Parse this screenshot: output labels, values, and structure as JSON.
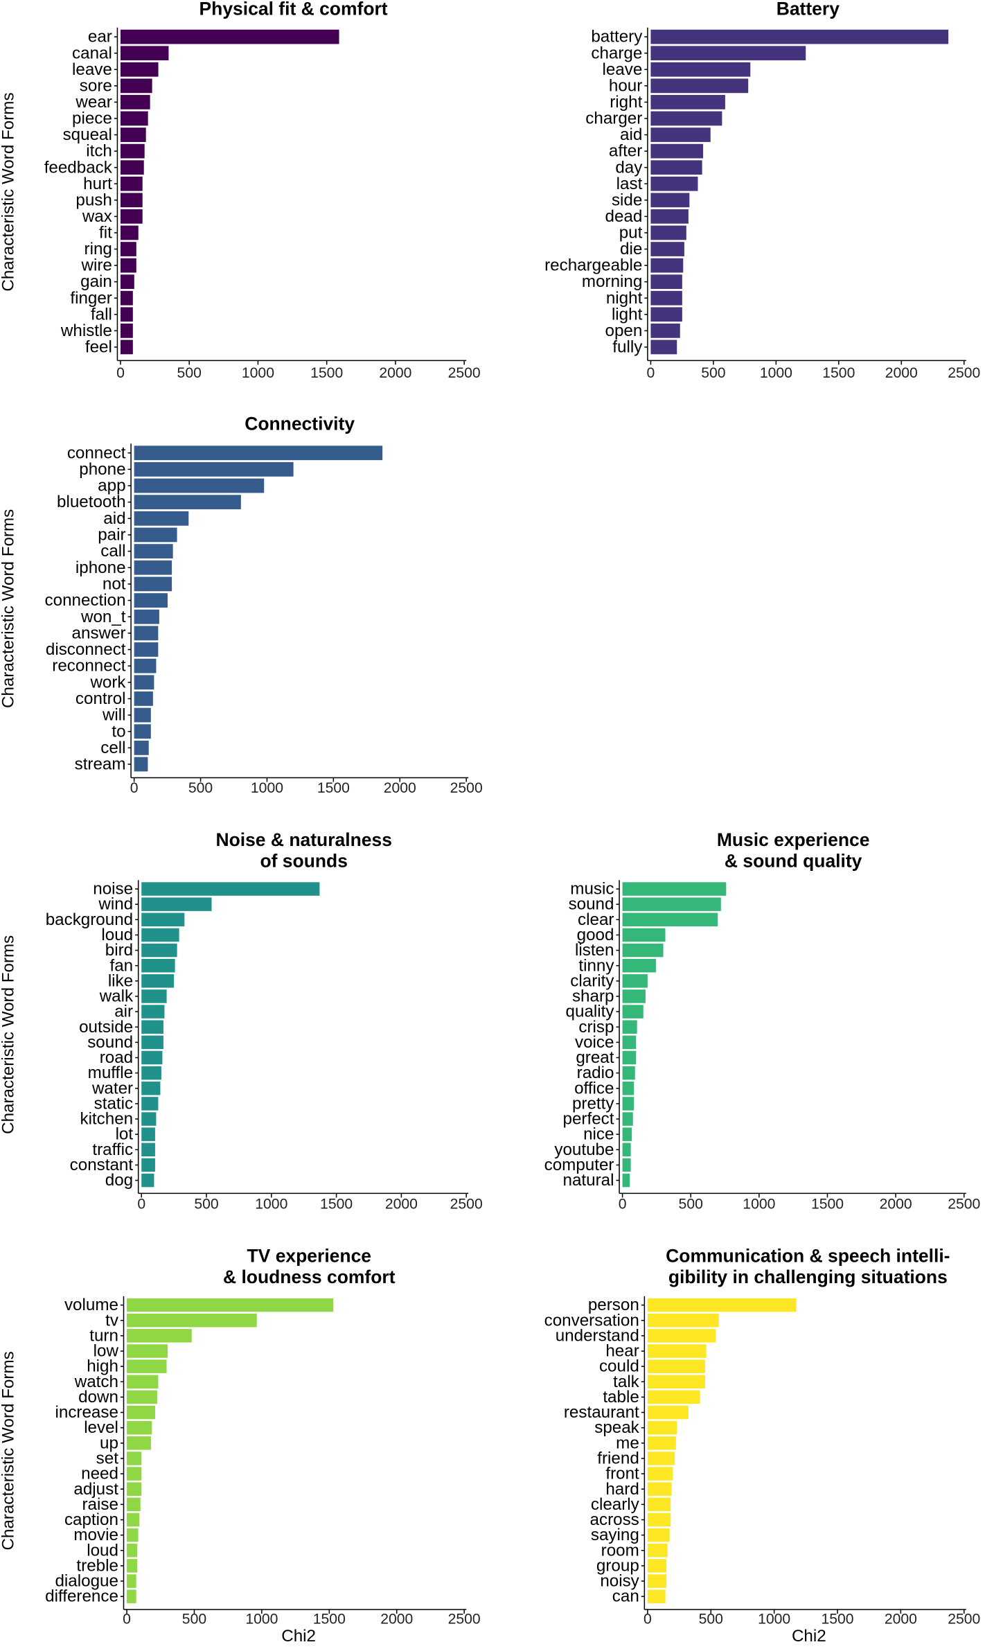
{
  "chart_data": [
    {
      "type": "bar",
      "orientation": "horizontal",
      "title": [
        "Physical fit & comfort"
      ],
      "color": "#440154",
      "ylabel": "Characteristic Word Forms",
      "xlabel": "",
      "xlim": [
        0,
        2500
      ],
      "xticks": [
        0,
        500,
        1000,
        1500,
        2000,
        2500
      ],
      "categories": [
        "ear",
        "canal",
        "leave",
        "sore",
        "wear",
        "piece",
        "squeal",
        "itch",
        "feedback",
        "hurt",
        "push",
        "wax",
        "fit",
        "ring",
        "wire",
        "gain",
        "finger",
        "fall",
        "whistle",
        "feel"
      ],
      "values": [
        1590,
        350,
        275,
        230,
        215,
        200,
        185,
        175,
        170,
        160,
        160,
        160,
        130,
        115,
        115,
        100,
        90,
        90,
        90,
        90
      ]
    },
    {
      "type": "bar",
      "orientation": "horizontal",
      "title": [
        "Battery"
      ],
      "color": "#46337E",
      "ylabel": "",
      "xlabel": "",
      "xlim": [
        0,
        2500
      ],
      "xticks": [
        0,
        500,
        1000,
        1500,
        2000,
        2500
      ],
      "categories": [
        "battery",
        "charge",
        "leave",
        "hour",
        "right",
        "charger",
        "aid",
        "after",
        "day",
        "last",
        "side",
        "dead",
        "put",
        "die",
        "rechargeable",
        "morning",
        "night",
        "light",
        "open",
        "fully"
      ],
      "values": [
        2375,
        1237,
        795,
        778,
        594,
        569,
        477,
        418,
        410,
        376,
        309,
        301,
        284,
        268,
        259,
        251,
        251,
        251,
        234,
        209
      ]
    },
    {
      "type": "bar",
      "orientation": "horizontal",
      "title": [
        "Connectivity"
      ],
      "color": "#365C8D",
      "ylabel": "Characteristic Word Forms",
      "xlabel": "",
      "xlim": [
        0,
        2500
      ],
      "xticks": [
        0,
        500,
        1000,
        1500,
        2000,
        2500
      ],
      "categories": [
        "connect",
        "phone",
        "app",
        "bluetooth",
        "aid",
        "pair",
        "call",
        "iphone",
        "not",
        "connection",
        "won_t",
        "answer",
        "disconnect",
        "reconnect",
        "work",
        "control",
        "will",
        "to",
        "cell",
        "stream"
      ],
      "values": [
        1869,
        1199,
        978,
        804,
        410,
        323,
        292,
        284,
        284,
        252,
        189,
        181,
        181,
        166,
        150,
        142,
        126,
        126,
        110,
        103
      ]
    },
    {
      "type": "bar",
      "orientation": "horizontal",
      "title": [
        "Noise & naturalness",
        "of sounds"
      ],
      "color": "#21918C",
      "ylabel": "Characteristic Word Forms",
      "xlabel": "",
      "xlim": [
        0,
        2500
      ],
      "xticks": [
        0,
        500,
        1000,
        1500,
        2000,
        2500
      ],
      "categories": [
        "noise",
        "wind",
        "background",
        "loud",
        "bird",
        "fan",
        "like",
        "walk",
        "air",
        "outside",
        "sound",
        "road",
        "muffle",
        "water",
        "static",
        "kitchen",
        "lot",
        "traffic",
        "constant",
        "dog"
      ],
      "values": [
        1371,
        540,
        331,
        290,
        274,
        258,
        250,
        194,
        177,
        169,
        169,
        161,
        153,
        145,
        129,
        113,
        105,
        105,
        105,
        97
      ]
    },
    {
      "type": "bar",
      "orientation": "horizontal",
      "title": [
        "Music experience",
        "& sound quality"
      ],
      "color": "#35B779",
      "ylabel": "",
      "xlabel": "",
      "xlim": [
        0,
        2500
      ],
      "xticks": [
        0,
        500,
        1000,
        1500,
        2000,
        2500
      ],
      "categories": [
        "music",
        "sound",
        "clear",
        "good",
        "listen",
        "tinny",
        "clarity",
        "sharp",
        "quality",
        "crisp",
        "voice",
        "great",
        "radio",
        "office",
        "pretty",
        "perfect",
        "nice",
        "youtube",
        "computer",
        "natural"
      ],
      "values": [
        759,
        721,
        698,
        314,
        299,
        245,
        184,
        169,
        153,
        107,
        100,
        100,
        92,
        84,
        84,
        77,
        69,
        61,
        61,
        54
      ]
    },
    {
      "type": "bar",
      "orientation": "horizontal",
      "title": [
        "TV experience",
        "& loudness comfort"
      ],
      "color": "#8FD744",
      "ylabel": "Characteristic Word Forms",
      "xlabel": "Chi2",
      "xlim": [
        0,
        2500
      ],
      "xticks": [
        0,
        500,
        1000,
        1500,
        2000,
        2500
      ],
      "categories": [
        "volume",
        "tv",
        "turn",
        "low",
        "high",
        "watch",
        "down",
        "increase",
        "level",
        "up",
        "set",
        "need",
        "adjust",
        "raise",
        "caption",
        "movie",
        "loud",
        "treble",
        "dialogue",
        "difference"
      ],
      "values": [
        1530,
        963,
        481,
        303,
        295,
        233,
        225,
        210,
        186,
        179,
        109,
        109,
        109,
        101,
        93,
        85,
        78,
        78,
        70,
        70
      ]
    },
    {
      "type": "bar",
      "orientation": "horizontal",
      "title": [
        "Communication & speech intelli-",
        "gibility in challenging situations"
      ],
      "color": "#FDE725",
      "ylabel": "",
      "xlabel": "Chi2",
      "xlim": [
        0,
        2500
      ],
      "xticks": [
        0,
        500,
        1000,
        1500,
        2000,
        2500
      ],
      "categories": [
        "person",
        "conversation",
        "understand",
        "hear",
        "could",
        "talk",
        "table",
        "restaurant",
        "speak",
        "me",
        "friend",
        "front",
        "hard",
        "clearly",
        "across",
        "saying",
        "room",
        "group",
        "noisy",
        "can"
      ],
      "values": [
        1175,
        563,
        538,
        464,
        455,
        455,
        414,
        323,
        232,
        224,
        215,
        199,
        190,
        182,
        182,
        174,
        157,
        149,
        149,
        141
      ]
    }
  ]
}
